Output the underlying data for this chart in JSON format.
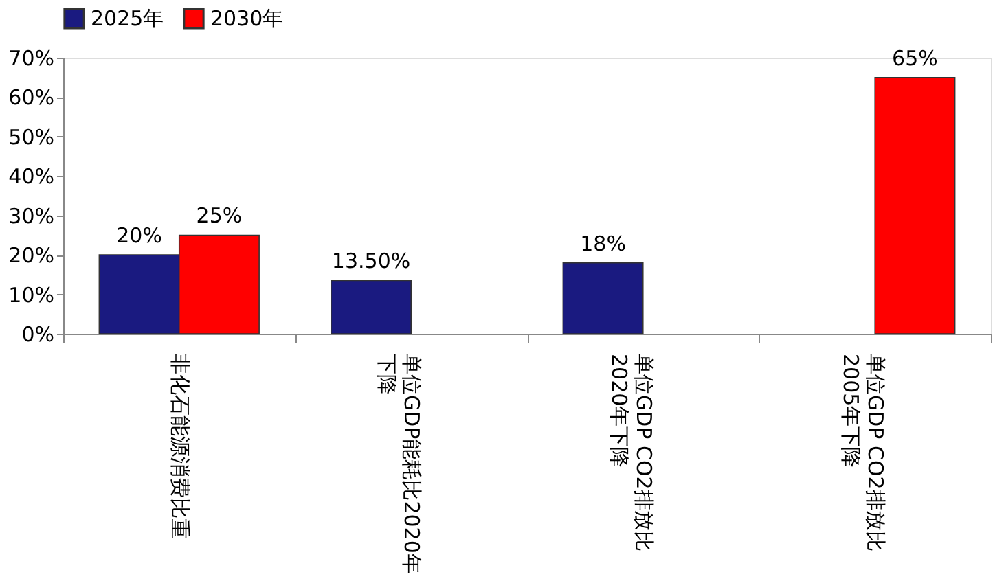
{
  "chart_data": {
    "type": "bar",
    "categories": [
      "非化石能源消费比重",
      "单位GDP能耗比2020年下降",
      "单位GDP CO2排放比\n2020年下降",
      "单位GDP CO2排放比\n2005年下降"
    ],
    "series": [
      {
        "name": "2025年",
        "color": "#1a1a80",
        "values": [
          20,
          13.5,
          18,
          null
        ],
        "value_labels": [
          "20%",
          "13.50%",
          "18%",
          null
        ]
      },
      {
        "name": "2030年",
        "color": "#ff0000",
        "values": [
          25,
          null,
          null,
          65
        ],
        "value_labels": [
          "25%",
          null,
          null,
          "65%"
        ]
      }
    ],
    "ylim": [
      0,
      70
    ],
    "yticks": [
      {
        "value": 0,
        "label": "0%"
      },
      {
        "value": 10,
        "label": "10%"
      },
      {
        "value": 20,
        "label": "20%"
      },
      {
        "value": 30,
        "label": "30%"
      },
      {
        "value": 40,
        "label": "40%"
      },
      {
        "value": 50,
        "label": "50%"
      },
      {
        "value": 60,
        "label": "60%"
      },
      {
        "value": 70,
        "label": "70%"
      }
    ],
    "grid": false,
    "legend": "top"
  }
}
